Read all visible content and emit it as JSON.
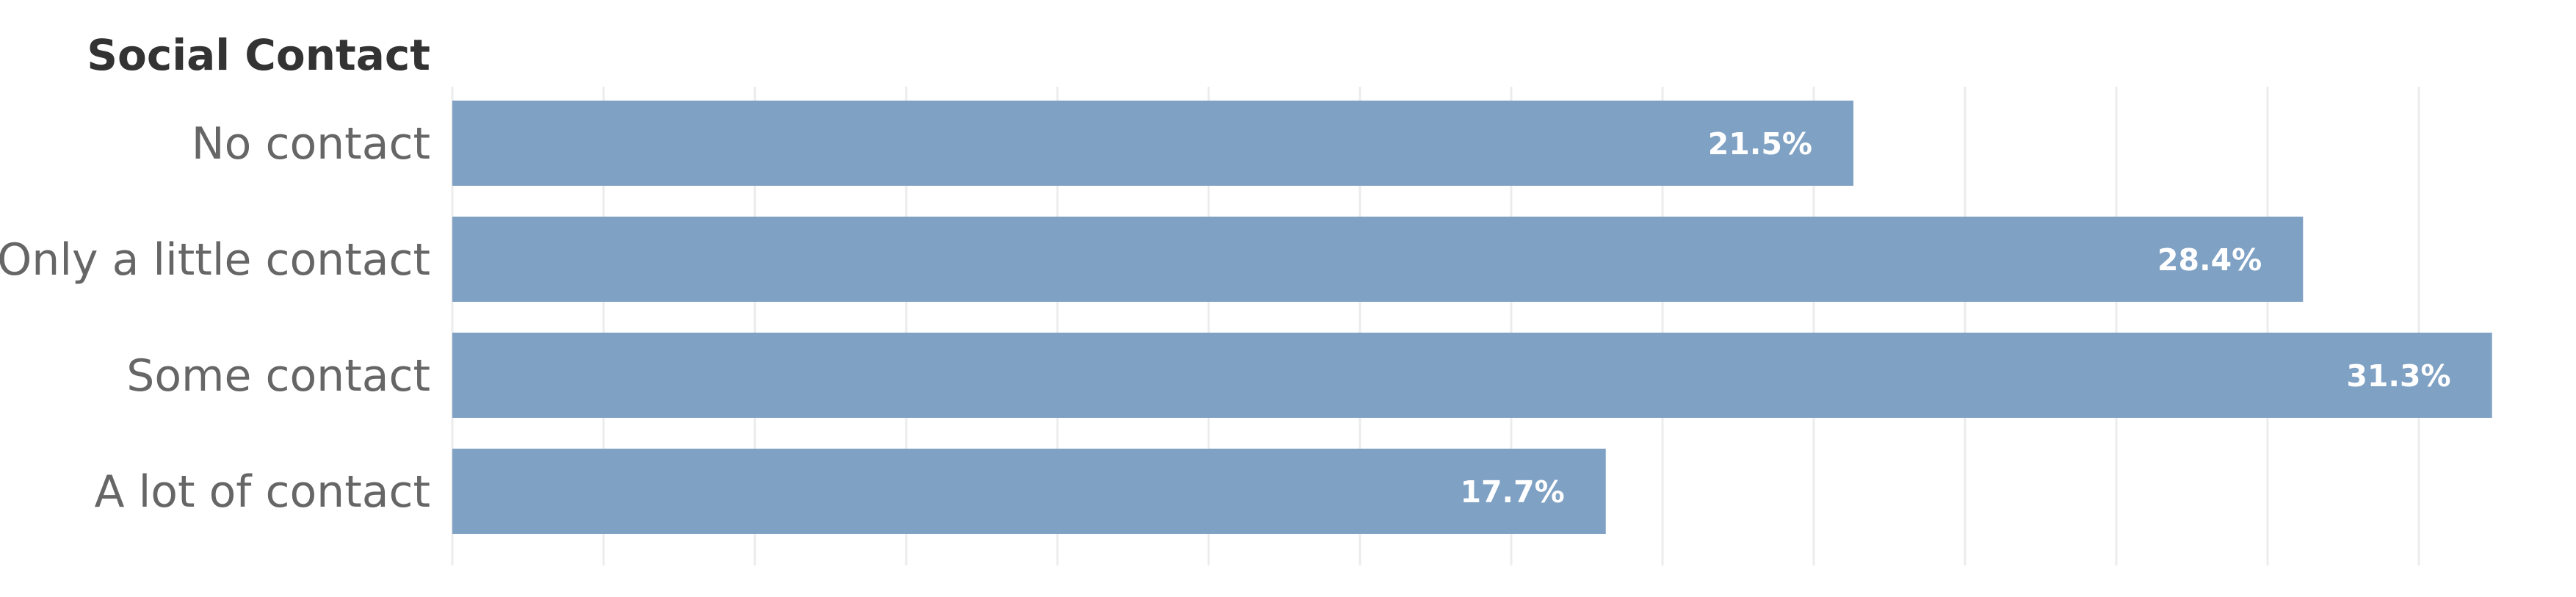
{
  "chart_data": {
    "type": "bar",
    "orientation": "horizontal",
    "row_header": "Social Contact",
    "categories": [
      "No contact",
      "Only a little contact",
      "Some contact",
      "A lot of contact"
    ],
    "values": [
      21.5,
      28.4,
      31.3,
      17.7
    ],
    "value_labels": [
      "21.5%",
      "28.4%",
      "31.3%",
      "17.7%"
    ],
    "unit": "%",
    "xlim": [
      0,
      31.8
    ],
    "grid": true,
    "bar_color": "#7fa1c4",
    "label_color": "#ffffff"
  }
}
